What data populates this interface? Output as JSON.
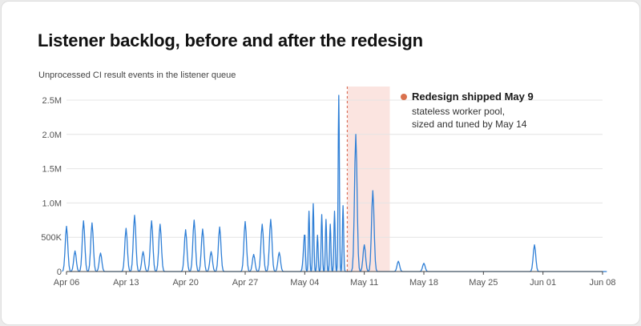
{
  "title": "Listener backlog, before and after the redesign",
  "subtitle": "Unprocessed CI result events in the listener queue",
  "annotation": {
    "title": "Redesign shipped May 9",
    "lines": [
      "stateless worker pool,",
      "sized and tuned by May 14"
    ],
    "marker_date": "May 09",
    "band_start": "May 09",
    "band_end": "May 14"
  },
  "colors": {
    "line": "#2f7fd6",
    "area": "#dbe9f7",
    "band": "#fbe4e0",
    "marker": "#d9705a",
    "dot": "#d9714e",
    "grid": "#e4e4e4",
    "axis": "#444444"
  },
  "chart_data": {
    "type": "line",
    "x_range": [
      "Apr 06",
      "Jun 08"
    ],
    "ylim": [
      0,
      2500000
    ],
    "y_ticks": [
      0,
      500000,
      1000000,
      1500000,
      2000000,
      2500000
    ],
    "y_tick_labels": [
      "0",
      "500K",
      "1.0M",
      "1.5M",
      "2.0M",
      "2.5M"
    ],
    "x_ticks": [
      "Apr 06",
      "Apr 13",
      "Apr 20",
      "Apr 27",
      "May 04",
      "May 11",
      "May 18",
      "May 25",
      "Jun 01",
      "Jun 08"
    ],
    "grid": "horizontal",
    "series": [
      {
        "values": [
          [
            "Apr 06",
            660000
          ],
          [
            "Apr 07",
            300000
          ],
          [
            "Apr 08",
            740000
          ],
          [
            "Apr 09",
            710000
          ],
          [
            "Apr 10",
            270000
          ],
          [
            "Apr 11",
            0
          ],
          [
            "Apr 12",
            0
          ],
          [
            "Apr 13",
            630000
          ],
          [
            "Apr 14",
            820000
          ],
          [
            "Apr 15",
            290000
          ],
          [
            "Apr 16",
            740000
          ],
          [
            "Apr 17",
            690000
          ],
          [
            "Apr 18",
            0
          ],
          [
            "Apr 19",
            0
          ],
          [
            "Apr 20",
            610000
          ],
          [
            "Apr 21",
            750000
          ],
          [
            "Apr 22",
            620000
          ],
          [
            "Apr 23",
            290000
          ],
          [
            "Apr 24",
            650000
          ],
          [
            "Apr 25",
            0
          ],
          [
            "Apr 26",
            0
          ],
          [
            "Apr 27",
            730000
          ],
          [
            "Apr 28",
            250000
          ],
          [
            "Apr 29",
            690000
          ],
          [
            "Apr 30",
            760000
          ],
          [
            "May 01",
            280000
          ],
          [
            "May 02",
            0
          ],
          [
            "May 03",
            0
          ],
          [
            "May 04",
            560000
          ],
          [
            "May 04.5",
            880000
          ],
          [
            "May 05",
            990000
          ],
          [
            "May 05.5",
            530000
          ],
          [
            "May 06",
            830000
          ],
          [
            "May 06.5",
            760000
          ],
          [
            "May 07",
            690000
          ],
          [
            "May 07.5",
            880000
          ],
          [
            "May 08",
            2570000
          ],
          [
            "May 08.5",
            960000
          ],
          [
            "May 09",
            0
          ],
          [
            "May 10",
            2000000
          ],
          [
            "May 11",
            390000
          ],
          [
            "May 12",
            1180000
          ],
          [
            "May 13",
            0
          ],
          [
            "May 14",
            0
          ],
          [
            "May 15",
            150000
          ],
          [
            "May 16",
            0
          ],
          [
            "May 17",
            0
          ],
          [
            "May 18",
            120000
          ],
          [
            "May 19",
            0
          ],
          [
            "May 30",
            0
          ],
          [
            "May 31",
            390000
          ],
          [
            "Jun 01",
            0
          ],
          [
            "Jun 08",
            0
          ]
        ]
      }
    ]
  }
}
